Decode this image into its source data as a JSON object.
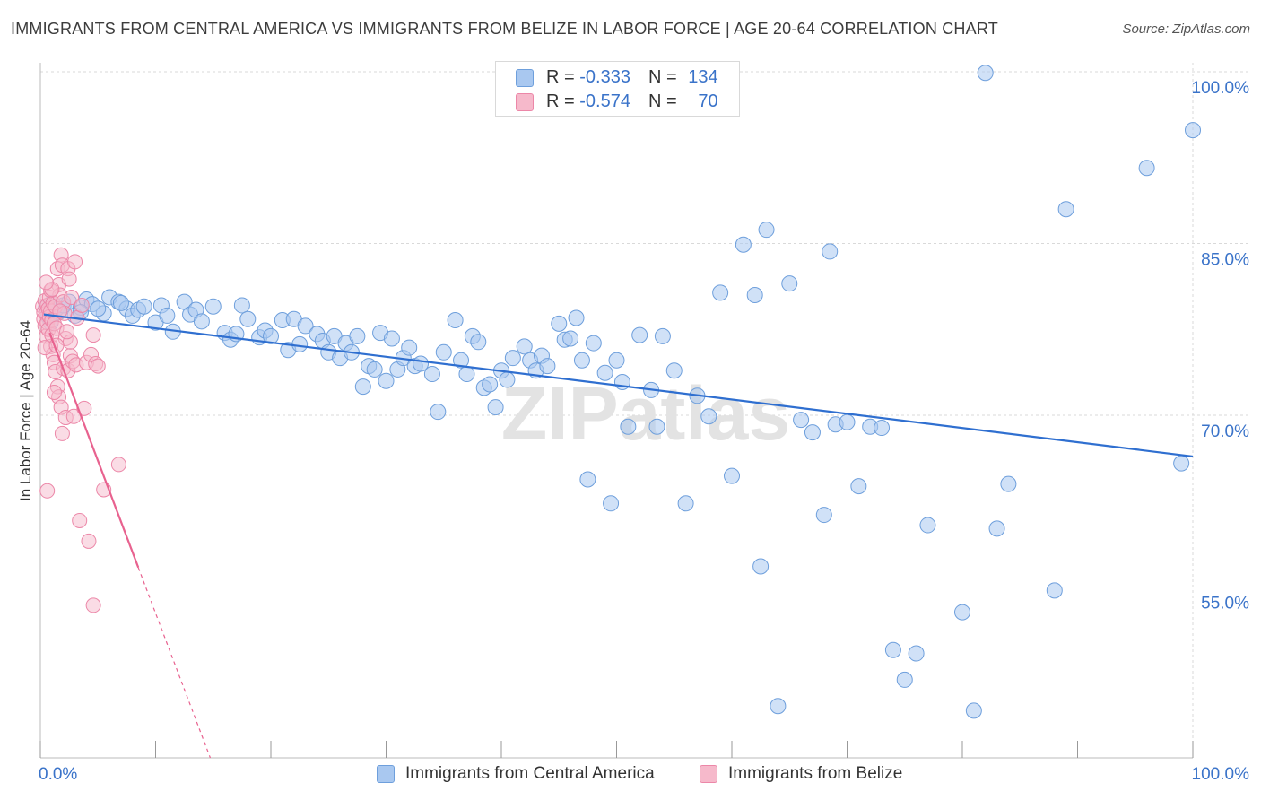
{
  "title": "IMMIGRANTS FROM CENTRAL AMERICA VS IMMIGRANTS FROM BELIZE IN LABOR FORCE | AGE 20-64 CORRELATION CHART",
  "source": "Source: ZipAtlas.com",
  "watermark": "ZIPatlas",
  "colors": {
    "central_america_fill": "#a9c8f0",
    "central_america_stroke": "#6e9fdc",
    "central_america_line": "#2f6fd0",
    "belize_fill": "#f6b9cb",
    "belize_stroke": "#ec87a8",
    "belize_line": "#e8628f",
    "axis_label_blue": "#3a73c9",
    "grid": "#d9d9d9"
  },
  "top_legend": {
    "rows": [
      {
        "r_label": "R =",
        "r_value": "-0.333",
        "n_label": "N =",
        "n_value": "134"
      },
      {
        "r_label": "R =",
        "r_value": "-0.574",
        "n_label": "N =",
        "n_value": "70"
      }
    ]
  },
  "bottom_legend": {
    "items": [
      "Immigrants from Central America",
      "Immigrants from Belize"
    ]
  },
  "chart_data": {
    "type": "scatter",
    "title": "IMMIGRANTS FROM CENTRAL AMERICA VS IMMIGRANTS FROM BELIZE IN LABOR FORCE | AGE 20-64 CORRELATION CHART",
    "xlabel": "",
    "ylabel": "In Labor Force | Age 20-64",
    "xlim": [
      0,
      100
    ],
    "ylim": [
      37,
      102
    ],
    "x_tick_labels": [
      "0.0%",
      "100.0%"
    ],
    "y_ticks": [
      55,
      70,
      85,
      100
    ],
    "y_tick_labels": [
      "55.0%",
      "70.0%",
      "85.0%",
      "100.0%"
    ],
    "grid": true,
    "legend_placement": "bottom",
    "series": [
      {
        "name": "Immigrants from Central America",
        "R": -0.333,
        "N": 134,
        "trend": {
          "x": [
            0.3,
            100
          ],
          "y": [
            78.8,
            66.4
          ]
        },
        "points": [
          [
            0.5,
            79.4
          ],
          [
            0.7,
            78.6
          ],
          [
            0.9,
            78.1
          ],
          [
            1.0,
            79.8
          ],
          [
            1.2,
            78.9
          ],
          [
            1.4,
            79.3
          ],
          [
            1.6,
            79.0
          ],
          [
            2.0,
            79.6
          ],
          [
            2.5,
            79.9
          ],
          [
            3.0,
            78.7
          ],
          [
            3.5,
            79.4
          ],
          [
            4.0,
            80.1
          ],
          [
            4.5,
            79.7
          ],
          [
            5.5,
            78.9
          ],
          [
            6.0,
            80.3
          ],
          [
            6.8,
            79.9
          ],
          [
            7.5,
            79.3
          ],
          [
            8.0,
            78.7
          ],
          [
            8.5,
            79.2
          ],
          [
            9.0,
            79.5
          ],
          [
            10.0,
            78.1
          ],
          [
            10.5,
            79.6
          ],
          [
            11.0,
            78.7
          ],
          [
            11.5,
            77.3
          ],
          [
            12.5,
            79.9
          ],
          [
            13.0,
            78.8
          ],
          [
            13.5,
            79.2
          ],
          [
            14.0,
            78.2
          ],
          [
            15.0,
            79.5
          ],
          [
            16.0,
            77.2
          ],
          [
            16.5,
            76.6
          ],
          [
            17.0,
            77.1
          ],
          [
            17.5,
            79.6
          ],
          [
            18.0,
            78.4
          ],
          [
            19.0,
            76.8
          ],
          [
            19.5,
            77.4
          ],
          [
            20.0,
            76.9
          ],
          [
            21.0,
            78.3
          ],
          [
            21.5,
            75.7
          ],
          [
            22.0,
            78.4
          ],
          [
            22.5,
            76.2
          ],
          [
            23.0,
            77.8
          ],
          [
            24.0,
            77.1
          ],
          [
            24.5,
            76.5
          ],
          [
            25.0,
            75.5
          ],
          [
            25.5,
            76.9
          ],
          [
            26.0,
            75.0
          ],
          [
            26.5,
            76.3
          ],
          [
            27.0,
            75.5
          ],
          [
            27.5,
            76.9
          ],
          [
            28.0,
            72.5
          ],
          [
            28.5,
            74.3
          ],
          [
            29.0,
            74.0
          ],
          [
            29.5,
            77.2
          ],
          [
            30.0,
            73.0
          ],
          [
            30.5,
            76.7
          ],
          [
            31.0,
            74.0
          ],
          [
            31.5,
            75.0
          ],
          [
            32.0,
            75.9
          ],
          [
            32.5,
            74.3
          ],
          [
            33.0,
            74.5
          ],
          [
            34.0,
            73.6
          ],
          [
            34.5,
            70.3
          ],
          [
            35.0,
            75.5
          ],
          [
            36.0,
            78.3
          ],
          [
            36.5,
            74.8
          ],
          [
            37.0,
            73.6
          ],
          [
            37.5,
            76.9
          ],
          [
            38.0,
            76.4
          ],
          [
            38.5,
            72.4
          ],
          [
            39.0,
            72.7
          ],
          [
            39.5,
            70.7
          ],
          [
            40.0,
            73.9
          ],
          [
            40.5,
            73.1
          ],
          [
            41.0,
            75.0
          ],
          [
            42.0,
            76.0
          ],
          [
            42.5,
            74.8
          ],
          [
            43.0,
            73.9
          ],
          [
            43.5,
            75.2
          ],
          [
            44.0,
            74.3
          ],
          [
            45.0,
            78.0
          ],
          [
            45.5,
            76.6
          ],
          [
            46.0,
            76.7
          ],
          [
            46.5,
            78.5
          ],
          [
            47.0,
            74.8
          ],
          [
            47.5,
            64.4
          ],
          [
            48.0,
            76.3
          ],
          [
            49.0,
            73.7
          ],
          [
            49.5,
            62.3
          ],
          [
            50.0,
            74.8
          ],
          [
            50.5,
            72.9
          ],
          [
            51.0,
            69.0
          ],
          [
            52.0,
            77.0
          ],
          [
            53.0,
            72.2
          ],
          [
            53.5,
            69.0
          ],
          [
            54.0,
            76.9
          ],
          [
            55.0,
            73.9
          ],
          [
            56.0,
            62.3
          ],
          [
            57.0,
            71.7
          ],
          [
            58.0,
            69.9
          ],
          [
            59.0,
            80.7
          ],
          [
            60.0,
            64.7
          ],
          [
            61.0,
            84.9
          ],
          [
            62.0,
            80.5
          ],
          [
            62.5,
            56.8
          ],
          [
            63.0,
            86.2
          ],
          [
            64.0,
            44.6
          ],
          [
            65.0,
            81.5
          ],
          [
            66.0,
            69.6
          ],
          [
            67.0,
            68.5
          ],
          [
            68.0,
            61.3
          ],
          [
            68.5,
            84.3
          ],
          [
            69.0,
            69.2
          ],
          [
            70.0,
            69.4
          ],
          [
            71.0,
            63.8
          ],
          [
            72.0,
            69.0
          ],
          [
            73.0,
            68.9
          ],
          [
            74.0,
            49.5
          ],
          [
            75.0,
            46.9
          ],
          [
            76.0,
            49.2
          ],
          [
            77.0,
            60.4
          ],
          [
            80.0,
            52.8
          ],
          [
            81.0,
            44.2
          ],
          [
            82.0,
            99.9
          ],
          [
            83.0,
            60.1
          ],
          [
            84.0,
            64.0
          ],
          [
            88.0,
            54.7
          ],
          [
            89.0,
            88.0
          ],
          [
            96.0,
            91.6
          ],
          [
            99.0,
            65.8
          ],
          [
            100.0,
            94.9
          ],
          [
            3.5,
            79.0
          ],
          [
            5.0,
            79.3
          ],
          [
            7.0,
            79.8
          ]
        ]
      },
      {
        "name": "Immigrants from Belize",
        "R": -0.574,
        "N": 70,
        "trend": {
          "x": [
            0.8,
            8.5
          ],
          "y": [
            77.2,
            56.7
          ]
        },
        "points": [
          [
            0.2,
            79.5
          ],
          [
            0.3,
            79.0
          ],
          [
            0.3,
            78.4
          ],
          [
            0.4,
            80.0
          ],
          [
            0.4,
            77.8
          ],
          [
            0.5,
            78.9
          ],
          [
            0.5,
            76.9
          ],
          [
            0.6,
            79.6
          ],
          [
            0.6,
            78.1
          ],
          [
            0.7,
            79.3
          ],
          [
            0.7,
            77.5
          ],
          [
            0.8,
            80.3
          ],
          [
            0.8,
            78.6
          ],
          [
            0.9,
            79.1
          ],
          [
            0.9,
            76.0
          ],
          [
            1.0,
            78.3
          ],
          [
            1.0,
            77.0
          ],
          [
            1.1,
            79.8
          ],
          [
            1.1,
            75.3
          ],
          [
            1.2,
            78.0
          ],
          [
            1.2,
            74.6
          ],
          [
            1.3,
            79.5
          ],
          [
            1.3,
            73.8
          ],
          [
            1.4,
            77.6
          ],
          [
            1.5,
            82.8
          ],
          [
            1.5,
            72.5
          ],
          [
            1.6,
            81.4
          ],
          [
            1.6,
            71.6
          ],
          [
            1.7,
            80.5
          ],
          [
            1.8,
            84.0
          ],
          [
            1.8,
            70.7
          ],
          [
            1.9,
            83.1
          ],
          [
            2.0,
            79.9
          ],
          [
            2.0,
            74.1
          ],
          [
            2.2,
            76.7
          ],
          [
            2.2,
            69.8
          ],
          [
            2.4,
            82.8
          ],
          [
            2.4,
            73.9
          ],
          [
            2.5,
            81.9
          ],
          [
            2.6,
            75.2
          ],
          [
            2.7,
            80.3
          ],
          [
            2.8,
            74.7
          ],
          [
            2.9,
            69.9
          ],
          [
            3.0,
            83.4
          ],
          [
            3.1,
            74.4
          ],
          [
            3.2,
            78.5
          ],
          [
            3.4,
            60.8
          ],
          [
            3.6,
            79.6
          ],
          [
            3.8,
            70.6
          ],
          [
            4.0,
            74.6
          ],
          [
            4.2,
            59.0
          ],
          [
            4.4,
            75.3
          ],
          [
            4.6,
            77.0
          ],
          [
            4.8,
            74.5
          ],
          [
            0.6,
            63.4
          ],
          [
            1.2,
            72.0
          ],
          [
            1.9,
            68.4
          ],
          [
            2.6,
            76.4
          ],
          [
            4.6,
            53.4
          ],
          [
            5.0,
            74.3
          ],
          [
            5.5,
            63.5
          ],
          [
            6.8,
            65.7
          ],
          [
            0.4,
            75.9
          ],
          [
            0.9,
            80.9
          ],
          [
            1.4,
            76.1
          ],
          [
            2.1,
            78.9
          ],
          [
            1.0,
            81.0
          ],
          [
            1.7,
            79.1
          ],
          [
            2.3,
            77.3
          ],
          [
            0.5,
            81.6
          ]
        ]
      }
    ]
  }
}
